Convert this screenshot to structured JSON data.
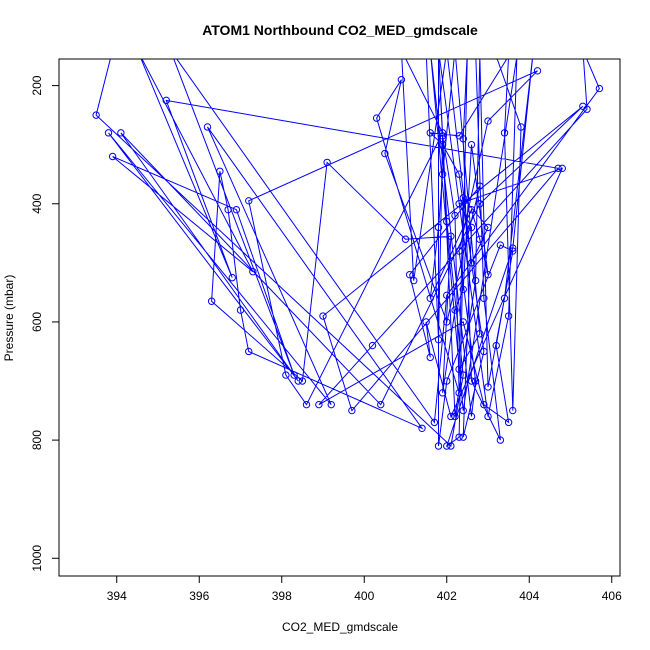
{
  "chart_data": {
    "type": "scatter",
    "title": "ATOM1 Northbound CO2_MED_gmdscale",
    "xlabel": "CO2_MED_gmdscale",
    "ylabel": "Pressure (mbar)",
    "xlim": [
      392.6,
      406.2
    ],
    "ylim": [
      1030,
      155
    ],
    "y_reversed": true,
    "x_ticks": [
      394,
      396,
      398,
      400,
      402,
      404,
      406
    ],
    "y_ticks": [
      200,
      400,
      600,
      800,
      1000
    ],
    "grid": false,
    "legend": "none",
    "colors": {
      "series": "#0000ff",
      "axis": "#000000"
    },
    "series": [
      {
        "points": [
          [
            393.9,
            140
          ],
          [
            393.5,
            250
          ],
          [
            402.1,
            810
          ],
          [
            402.4,
            690
          ],
          [
            402.0,
            430
          ],
          [
            401.8,
            140
          ],
          [
            401.9,
            290
          ],
          [
            402.2,
            760
          ],
          [
            402.7,
            530
          ],
          [
            402.8,
            150
          ],
          [
            403.0,
            710
          ],
          [
            403.4,
            560
          ],
          [
            404.1,
            140
          ],
          [
            403.6,
            475
          ],
          [
            402.0,
            810
          ],
          [
            402.3,
            795
          ],
          [
            402.5,
            140
          ],
          [
            402.4,
            290
          ],
          [
            402.6,
            700
          ],
          [
            403.3,
            800
          ],
          [
            402.9,
            560
          ],
          [
            402.7,
            140
          ],
          [
            403.2,
            150
          ],
          [
            403.8,
            270
          ],
          [
            403.6,
            750
          ],
          [
            403.4,
            280
          ],
          [
            403.5,
            150
          ],
          [
            402.3,
            285
          ],
          [
            401.6,
            280
          ],
          [
            401.9,
            300
          ],
          [
            402.3,
            350
          ],
          [
            402.9,
            650
          ],
          [
            402.4,
            795
          ],
          [
            402.6,
            440
          ],
          [
            402.3,
            400
          ],
          [
            404.8,
            340
          ],
          [
            402.1,
            760
          ],
          [
            401.5,
            600
          ],
          [
            401.6,
            660
          ],
          [
            401.1,
            520
          ],
          [
            402.8,
            370
          ],
          [
            402.0,
            600
          ],
          [
            400.5,
            315
          ],
          [
            400.9,
            190
          ],
          [
            400.3,
            255
          ],
          [
            402.3,
            720
          ],
          [
            402.2,
            420
          ],
          [
            401.9,
            285
          ],
          [
            401.8,
            630
          ],
          [
            401.5,
            140
          ],
          [
            401.8,
            140
          ],
          [
            403.0,
            760
          ],
          [
            403.5,
            590
          ],
          [
            403.7,
            150
          ],
          [
            402.4,
            750
          ],
          [
            401.6,
            140
          ],
          [
            402.6,
            760
          ],
          [
            402.7,
            700
          ],
          [
            402.3,
            480
          ],
          [
            403.0,
            260
          ],
          [
            404.2,
            175
          ],
          [
            397.2,
            395
          ],
          [
            398.1,
            690
          ],
          [
            398.6,
            740
          ],
          [
            401.9,
            280
          ],
          [
            400.9,
            140
          ],
          [
            401.2,
            530
          ],
          [
            402.0,
            140
          ],
          [
            402.6,
            500
          ],
          [
            403.0,
            440
          ],
          [
            402.4,
            390
          ],
          [
            402.3,
            680
          ],
          [
            402.8,
            620
          ],
          [
            402.2,
            140
          ],
          [
            401.9,
            350
          ],
          [
            401.8,
            440
          ],
          [
            401.6,
            560
          ],
          [
            402.6,
            410
          ],
          [
            402.8,
            460
          ],
          [
            403.0,
            520
          ],
          [
            402.6,
            300
          ],
          [
            402.4,
            545
          ],
          [
            402.2,
            580
          ],
          [
            401.9,
            720
          ],
          [
            402.1,
            455
          ],
          [
            401.0,
            460
          ],
          [
            399.1,
            330
          ],
          [
            398.5,
            700
          ],
          [
            396.3,
            565
          ],
          [
            396.5,
            345
          ],
          [
            396.7,
            410
          ],
          [
            397.0,
            580
          ],
          [
            397.2,
            650
          ],
          [
            401.4,
            780
          ],
          [
            396.2,
            270
          ],
          [
            399.2,
            740
          ],
          [
            393.8,
            280
          ],
          [
            398.4,
            700
          ],
          [
            394.1,
            280
          ],
          [
            400.4,
            740
          ],
          [
            402.8,
            400
          ],
          [
            405.3,
            235
          ],
          [
            399.0,
            590
          ],
          [
            399.7,
            750
          ],
          [
            404.7,
            340
          ],
          [
            395.2,
            225
          ],
          [
            396.8,
            525
          ],
          [
            394.5,
            140
          ],
          [
            397.3,
            515
          ],
          [
            393.9,
            320
          ],
          [
            396.9,
            410
          ],
          [
            398.3,
            690
          ],
          [
            395.3,
            140
          ],
          [
            401.7,
            770
          ],
          [
            402.0,
            555
          ],
          [
            405.7,
            205
          ],
          [
            405.3,
            140
          ],
          [
            405.4,
            240
          ],
          [
            400.2,
            640
          ],
          [
            398.9,
            740
          ],
          [
            402.4,
            600
          ],
          [
            402.9,
            740
          ],
          [
            403.5,
            770
          ],
          [
            403.2,
            640
          ],
          [
            403.6,
            480
          ],
          [
            403.3,
            470
          ],
          [
            402.0,
            700
          ],
          [
            401.8,
            810
          ],
          [
            401.8,
            140
          ]
        ]
      }
    ]
  }
}
